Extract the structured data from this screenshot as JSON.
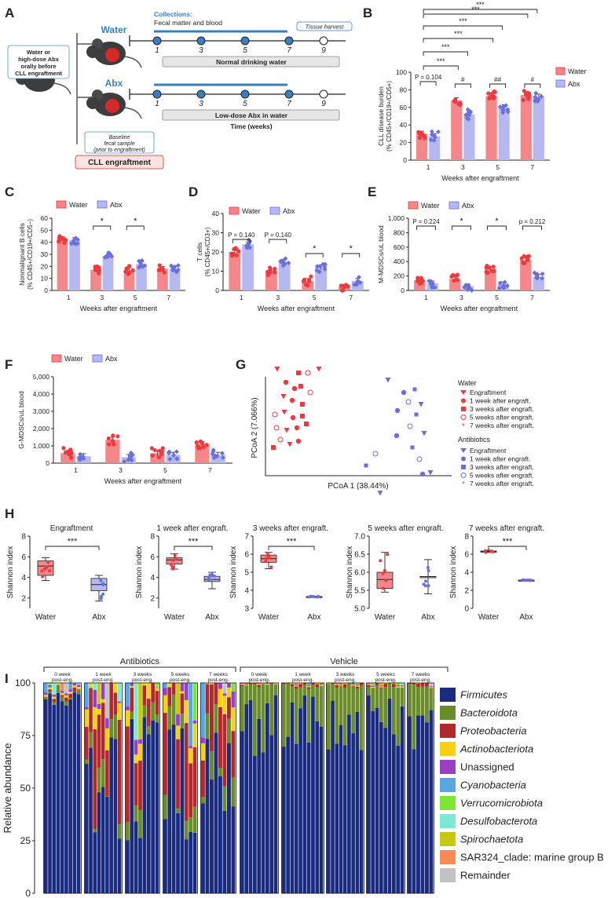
{
  "colors": {
    "water": "#f0383e",
    "water_light": "#f5878a",
    "abx": "#6b6fdc",
    "abx_light": "#b6b8f2",
    "blue_line": "#3a7fc0",
    "phyla": [
      "#1a2b80",
      "#6a8d2a",
      "#b2292b",
      "#f6d113",
      "#9a3fc4",
      "#5aa6e4",
      "#7ee535",
      "#7de8d3",
      "#c6c812",
      "#f98a58",
      "#c2c2c2"
    ]
  },
  "panel_labels": {
    "A": "A",
    "B": "B",
    "C": "C",
    "D": "D",
    "E": "E",
    "F": "F",
    "G": "G",
    "H": "H",
    "I": "I"
  },
  "panelA": {
    "water_label": "Water",
    "abx_label": "Abx",
    "collections_title": "Collections:",
    "collections_sub": "Fecal matter and blood",
    "tissue_harvest": "Tissue harvest",
    "pretreat_box": "Water or high-dose Abx orally before CLL engraftment",
    "water_timeline": [
      "1",
      "3",
      "5",
      "7",
      "9"
    ],
    "abx_timeline": [
      "1",
      "3",
      "5",
      "7",
      "9"
    ],
    "normal_water": "Normal drinking water",
    "low_dose": "Low-dose Abx in water",
    "time_label": "Time (weeks)",
    "baseline": "Baseline fecal sample (prior to engraftment)",
    "cll_engraftment": "CLL engraftment"
  },
  "legend": {
    "water": "Water",
    "abx": "Abx"
  },
  "chart_data": [
    {
      "id": "B",
      "type": "bar",
      "categories": [
        "1",
        "3",
        "5",
        "7"
      ],
      "series": [
        {
          "name": "Water",
          "values": [
            30,
            68,
            73,
            74
          ]
        },
        {
          "name": "Abx",
          "values": [
            27,
            52,
            60,
            72
          ]
        }
      ],
      "ylim": [
        0,
        100
      ],
      "yticks": [
        "0",
        "20",
        "40",
        "60",
        "80",
        "100"
      ],
      "ylabel": "CLL disease burden (% CD45+/CD19+/CD5+)",
      "xlabel": "Weeks after engraftment",
      "annotations": [
        "P = 0.104",
        "#",
        "##",
        "#",
        "***",
        "***",
        "***",
        "***",
        "***",
        "***"
      ]
    },
    {
      "id": "C",
      "type": "bar",
      "categories": [
        "1",
        "3",
        "5",
        "7"
      ],
      "series": [
        {
          "name": "Water",
          "values": [
            43,
            17,
            17,
            18
          ]
        },
        {
          "name": "Abx",
          "values": [
            42,
            28,
            22,
            18
          ]
        }
      ],
      "ylim": [
        0,
        60
      ],
      "yticks": [
        "0",
        "10",
        "20",
        "30",
        "40",
        "50",
        "60"
      ],
      "ylabel": "Nonmalignant B cells (% CD45+/CD19+/CD5−)",
      "xlabel": "Weeks after engraftment",
      "annotations": [
        "*",
        "*"
      ]
    },
    {
      "id": "D",
      "type": "bar",
      "categories": [
        "1",
        "3",
        "5",
        "7"
      ],
      "series": [
        {
          "name": "Water",
          "values": [
            20,
            10,
            5,
            2
          ]
        },
        {
          "name": "Abx",
          "values": [
            24,
            15,
            12,
            5
          ]
        }
      ],
      "ylim": [
        0,
        40
      ],
      "yticks": [
        "0",
        "10",
        "20",
        "30",
        "40"
      ],
      "ylabel": "T cells (% CD45+/CD3+)",
      "xlabel": "Weeks after engraftment",
      "annotations": [
        "P = 0.140",
        "P = 0.140",
        "*",
        "*"
      ]
    },
    {
      "id": "E",
      "type": "bar",
      "categories": [
        "1",
        "3",
        "5",
        "7"
      ],
      "series": [
        {
          "name": "Water",
          "values": [
            140,
            160,
            300,
            420
          ]
        },
        {
          "name": "Abx",
          "values": [
            100,
            60,
            90,
            190
          ]
        }
      ],
      "ylim": [
        0,
        1000
      ],
      "yticks": [
        "0",
        "200",
        "400",
        "600",
        "800",
        "1,000"
      ],
      "ylabel": "M-MDSCs/uL blood",
      "xlabel": "Weeks after engraftment",
      "annotations": [
        "P = 0.224",
        "*",
        "*",
        "p = 0.212"
      ]
    },
    {
      "id": "F",
      "type": "bar",
      "categories": [
        "1",
        "3",
        "5",
        "7"
      ],
      "series": [
        {
          "name": "Water",
          "values": [
            580,
            1350,
            580,
            1100
          ]
        },
        {
          "name": "Abx",
          "values": [
            400,
            350,
            480,
            480
          ]
        }
      ],
      "ylim": [
        0,
        5000
      ],
      "yticks": [
        "0",
        "1,000",
        "2,000",
        "3,000",
        "4,000",
        "5,000"
      ],
      "ylabel": "G-MDSCs/uL blood",
      "xlabel": "Weeks after engraftment"
    },
    {
      "id": "G",
      "type": "scatter",
      "xlabel": "PCoA 1 (38.44%)",
      "ylabel": "PCoA 2 (7.066%)",
      "legend_water_title": "Water",
      "legend_abx_title": "Antibiotics",
      "legend_entries": [
        "Engraftment",
        "1 week after engraft.",
        "3 weeks after engraft.",
        "5 weeks after engraft.",
        "7 weeks after engraft."
      ]
    },
    {
      "id": "H",
      "type": "box",
      "ylabel": "Shannon index",
      "categories": [
        "Water",
        "Abx"
      ],
      "panels": [
        {
          "title": "Engraftment",
          "yticks": [
            "2",
            "4",
            "6",
            "8"
          ],
          "ylim": [
            1,
            8
          ],
          "water": [
            3.7,
            4.2,
            5.1,
            5.6,
            5.9
          ],
          "abx": [
            1.7,
            2.7,
            3.3,
            3.9,
            4.2
          ],
          "sig": "***"
        },
        {
          "title": "1 week after engraft.",
          "yticks": [
            "2",
            "4",
            "6",
            "8"
          ],
          "ylim": [
            1,
            8
          ],
          "water": [
            4.8,
            5.3,
            5.7,
            5.9,
            6.3
          ],
          "abx": [
            2.9,
            3.6,
            3.8,
            4.1,
            4.5
          ],
          "sig": "***"
        },
        {
          "title": "3 weeks after engraft.",
          "yticks": [
            "3",
            "4",
            "5",
            "6",
            "7"
          ],
          "ylim": [
            3,
            7
          ],
          "water": [
            5.2,
            5.55,
            5.75,
            5.95,
            6.1
          ],
          "abx": [
            3.63,
            3.64,
            3.65,
            3.66,
            3.67
          ],
          "sig": "***"
        },
        {
          "title": "5 weeks after engraft.",
          "yticks": [
            "5.0",
            "5.5",
            "6.0",
            "6.5",
            "7.0"
          ],
          "ylim": [
            5,
            7
          ],
          "water": [
            5.45,
            5.55,
            5.8,
            6.0,
            6.55
          ],
          "abx": [
            5.4,
            5.88,
            5.88,
            5.88,
            6.35
          ],
          "sig": ""
        },
        {
          "title": "7 weeks after engraft.",
          "yticks": [
            "0",
            "2",
            "4",
            "6",
            "8"
          ],
          "ylim": [
            0,
            8
          ],
          "water": [
            6.2,
            6.25,
            6.3,
            6.35,
            6.45
          ],
          "abx": [
            3.1,
            3.1,
            3.12,
            3.14,
            3.14
          ],
          "sig": "***"
        }
      ]
    },
    {
      "id": "I",
      "type": "stacked-bar",
      "ylabel": "Relative abundance",
      "yticks": [
        "0",
        "25",
        "50",
        "75",
        "100"
      ],
      "group_titles": [
        "Antibiotics",
        "Vehicle"
      ],
      "timepoints": [
        "0 week post-eng.",
        "1 week post-eng.",
        "3 weeks post-eng.",
        "5 weeks post-eng.",
        "7 weeks post-eng."
      ],
      "legend": [
        "Firmicutes",
        "Bacteroidota",
        "Proteobacteria",
        "Actinobacteriota",
        "Unassigned",
        "Cyanobacteria",
        "Verrucomicrobiota",
        "Desulfobacterota",
        "Spirochaetota",
        "SAR324_clade: marine group B",
        "Remainder"
      ],
      "italic": [
        true,
        true,
        true,
        true,
        false,
        true,
        true,
        true,
        true,
        false,
        false
      ]
    }
  ]
}
